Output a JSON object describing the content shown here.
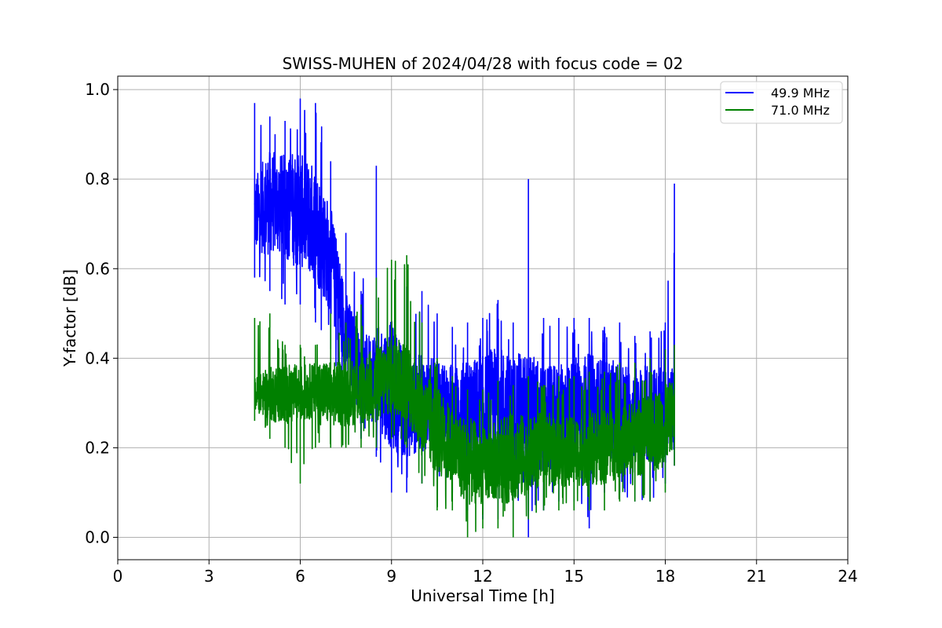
{
  "chart_data": {
    "type": "line",
    "title": "SWISS-MUHEN of 2024/04/28 with focus code = 02",
    "xlabel": "Universal Time [h]",
    "ylabel": "Y-factor [dB]",
    "xlim": [
      0,
      24
    ],
    "ylim": [
      -0.05,
      1.03
    ],
    "xticks": [
      0,
      3,
      6,
      9,
      12,
      15,
      18,
      21,
      24
    ],
    "yticks": [
      0.0,
      0.2,
      0.4,
      0.6,
      0.8,
      1.0
    ],
    "xtick_labels": [
      "0",
      "3",
      "6",
      "9",
      "12",
      "15",
      "18",
      "21",
      "24"
    ],
    "ytick_labels": [
      "0.0",
      "0.2",
      "0.4",
      "0.6",
      "0.8",
      "1.0"
    ],
    "grid": true,
    "legend_position": "top-right",
    "series": [
      {
        "name": "49.9 MHz",
        "color": "#0000ff",
        "x": [
          4.5,
          5.0,
          5.5,
          6.0,
          6.5,
          7.0,
          7.5,
          8.0,
          8.5,
          9.0,
          9.5,
          10.0,
          10.5,
          11.0,
          11.5,
          12.0,
          12.5,
          13.0,
          13.5,
          14.0,
          14.5,
          15.0,
          15.5,
          16.0,
          16.5,
          17.0,
          17.5,
          18.0,
          18.3
        ],
        "mean": [
          0.72,
          0.75,
          0.74,
          0.73,
          0.7,
          0.62,
          0.45,
          0.36,
          0.36,
          0.34,
          0.29,
          0.3,
          0.3,
          0.28,
          0.27,
          0.28,
          0.29,
          0.27,
          0.26,
          0.26,
          0.27,
          0.28,
          0.29,
          0.29,
          0.28,
          0.28,
          0.27,
          0.28,
          0.3
        ],
        "min": [
          0.58,
          0.55,
          0.52,
          0.52,
          0.48,
          0.42,
          0.28,
          0.22,
          0.18,
          0.1,
          0.1,
          0.12,
          0.14,
          0.1,
          0.06,
          0.04,
          0.04,
          0.04,
          0.0,
          0.06,
          0.08,
          0.08,
          0.02,
          0.1,
          0.1,
          0.08,
          0.08,
          0.12,
          0.16
        ],
        "max": [
          0.97,
          0.94,
          0.93,
          0.98,
          0.97,
          0.84,
          0.68,
          0.55,
          0.83,
          0.6,
          0.56,
          0.55,
          0.5,
          0.47,
          0.48,
          0.49,
          0.53,
          0.48,
          0.8,
          0.49,
          0.49,
          0.49,
          0.49,
          0.47,
          0.48,
          0.45,
          0.46,
          0.48,
          0.79
        ]
      },
      {
        "name": "71.0 MHz",
        "color": "#008000",
        "x": [
          4.5,
          5.0,
          5.5,
          6.0,
          6.5,
          7.0,
          7.5,
          8.0,
          8.5,
          9.0,
          9.5,
          10.0,
          10.5,
          11.0,
          11.5,
          12.0,
          12.5,
          13.0,
          13.5,
          14.0,
          14.5,
          15.0,
          15.5,
          16.0,
          16.5,
          17.0,
          17.5,
          18.0,
          18.3
        ],
        "mean": [
          0.32,
          0.32,
          0.32,
          0.32,
          0.33,
          0.32,
          0.32,
          0.33,
          0.34,
          0.36,
          0.35,
          0.27,
          0.24,
          0.2,
          0.17,
          0.16,
          0.17,
          0.18,
          0.18,
          0.2,
          0.19,
          0.19,
          0.2,
          0.2,
          0.21,
          0.22,
          0.23,
          0.25,
          0.28
        ],
        "min": [
          0.26,
          0.22,
          0.2,
          0.12,
          0.2,
          0.2,
          0.2,
          0.2,
          0.2,
          0.22,
          0.2,
          0.12,
          0.06,
          0.06,
          0.0,
          0.02,
          0.02,
          0.0,
          0.04,
          0.06,
          0.06,
          0.06,
          0.06,
          0.06,
          0.08,
          0.08,
          0.08,
          0.1,
          0.16
        ],
        "max": [
          0.49,
          0.5,
          0.43,
          0.43,
          0.43,
          0.5,
          0.48,
          0.52,
          0.58,
          0.62,
          0.63,
          0.48,
          0.4,
          0.36,
          0.33,
          0.33,
          0.35,
          0.34,
          0.36,
          0.34,
          0.36,
          0.36,
          0.37,
          0.37,
          0.39,
          0.39,
          0.4,
          0.42,
          0.43
        ]
      }
    ]
  }
}
